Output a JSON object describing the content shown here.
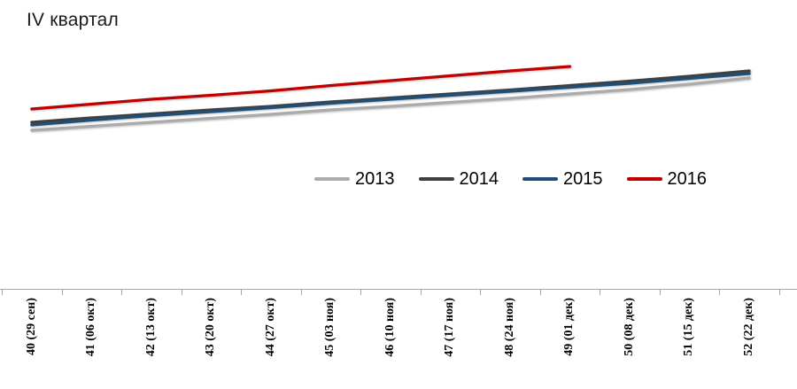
{
  "title": "IV квартал",
  "legend": {
    "items": [
      {
        "label": "2013",
        "color": "#ABABAB"
      },
      {
        "label": "2014",
        "color": "#3F3F3F"
      },
      {
        "label": "2015",
        "color": "#1F4E79"
      },
      {
        "label": "2016",
        "color": "#C00000"
      }
    ]
  },
  "axis": {
    "line_color": "#A6A6A6",
    "tick_count": 14
  },
  "chart_data": {
    "type": "line",
    "title": "IV квартал",
    "categories": [
      "40 (29 сен)",
      "41 (06 окт)",
      "42 (13 окт)",
      "43 (20 окт)",
      "44 (27 окт)",
      "45 (03 ноя)",
      "46 (10 ноя)",
      "47 (17 ноя)",
      "48 (24 ноя)",
      "49 (01 дек)",
      "50 (08 дек)",
      "51 (15 дек)",
      "52 (22 дек)"
    ],
    "xlabel": "",
    "ylabel": "",
    "value_units": "relative units (chart shows no y-axis)",
    "grid": false,
    "legend_position": "center, mid-chart",
    "note": "Series 2016 ends at week 49 (01 дек); all series rise steadily through Q4",
    "series": [
      {
        "name": "2013",
        "color": "#ABABAB",
        "values": [
          53,
          57.5,
          62,
          66.5,
          71,
          76,
          80,
          84.5,
          89,
          94,
          99,
          105,
          112
        ]
      },
      {
        "name": "2014",
        "color": "#3F3F3F",
        "values": [
          62,
          67,
          71.5,
          76,
          80,
          85,
          89.5,
          94,
          98.5,
          103.5,
          108.5,
          114,
          120
        ]
      },
      {
        "name": "2015",
        "color": "#1F4E79",
        "values": [
          59,
          64.5,
          69.5,
          74,
          78.5,
          83.5,
          88,
          92.5,
          97,
          101.5,
          106,
          111.5,
          117
        ]
      },
      {
        "name": "2016",
        "color": "#C00000",
        "values": [
          77,
          82.5,
          88,
          92.5,
          97.5,
          103.5,
          109,
          114.5,
          120,
          125
        ]
      }
    ]
  }
}
